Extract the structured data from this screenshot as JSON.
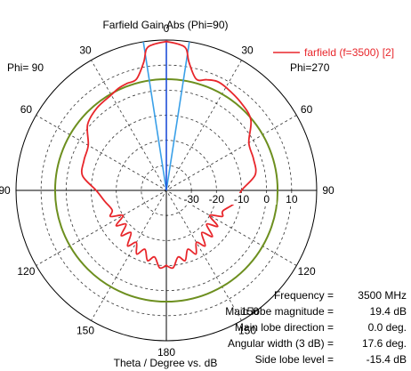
{
  "chart_data": {
    "type": "polar-line",
    "title": "Farfield Gain Abs (Phi=90)",
    "xlabel": "Theta / Degree vs. dB",
    "phi_left_label": "Phi= 90",
    "phi_right_label": "Phi=270",
    "angle_ticks": [
      "0",
      "30",
      "60",
      "90",
      "120",
      "150",
      "180",
      "150",
      "120",
      "90",
      "60",
      "30"
    ],
    "radial_ticks": [
      "-30",
      "-20",
      "-10",
      "0",
      "10"
    ],
    "radial_range_db": [
      -40,
      20
    ],
    "series": [
      {
        "name": "farfield (f=3500) [2]",
        "color": "#e8262b",
        "theta_deg": [
          0,
          5,
          8,
          10,
          15,
          20,
          25,
          30,
          40,
          50,
          60,
          70,
          80,
          90,
          100,
          110,
          115,
          120,
          125,
          130,
          135,
          140,
          145,
          150,
          155,
          160,
          165,
          170,
          175,
          180
        ],
        "gain_right_db": [
          19.4,
          18.5,
          17.0,
          12.0,
          6.0,
          7.0,
          8.0,
          7.5,
          6.0,
          4.0,
          -2.0,
          -3.0,
          -4.0,
          -10.0,
          -12.0,
          -16.0,
          -15.4,
          -20.0,
          -15.0,
          -19.0,
          -14.0,
          -18.0,
          -13.0,
          -16.0,
          -12.0,
          -15.0,
          -11.0,
          -13.0,
          -9.0,
          -10.0
        ],
        "gain_left_db": [
          19.4,
          18.5,
          17.0,
          12.0,
          6.0,
          5.5,
          5.0,
          4.0,
          3.0,
          1.0,
          -4.0,
          -5.0,
          -6.0,
          -12.0,
          -15.0,
          -17.0,
          -15.4,
          -20.0,
          -15.5,
          -19.0,
          -14.5,
          -18.0,
          -13.0,
          -16.0,
          -12.0,
          -15.0,
          -11.0,
          -13.0,
          -9.0,
          -10.0
        ]
      }
    ],
    "reference_circle_db": 4.4,
    "reference_circle_color": "#6d8f1f",
    "main_lobe_color": "#1f4fd8",
    "beamwidth_color": "#3aa0e8",
    "main_lobe_direction_deg": 0.0,
    "angular_width_deg": 17.6
  },
  "info": {
    "angle_label": "150",
    "lines": [
      {
        "label": "Frequency = ",
        "value": "3500 MHz"
      },
      {
        "label": "Main lobe magnitude = ",
        "value": "19.4 dB"
      },
      {
        "label": "Main lobe direction = ",
        "value": "0.0 deg."
      },
      {
        "label": "Angular width (3 dB) = ",
        "value": "17.6 deg."
      },
      {
        "label": "Side lobe level = ",
        "value": "-15.4 dB"
      }
    ]
  }
}
